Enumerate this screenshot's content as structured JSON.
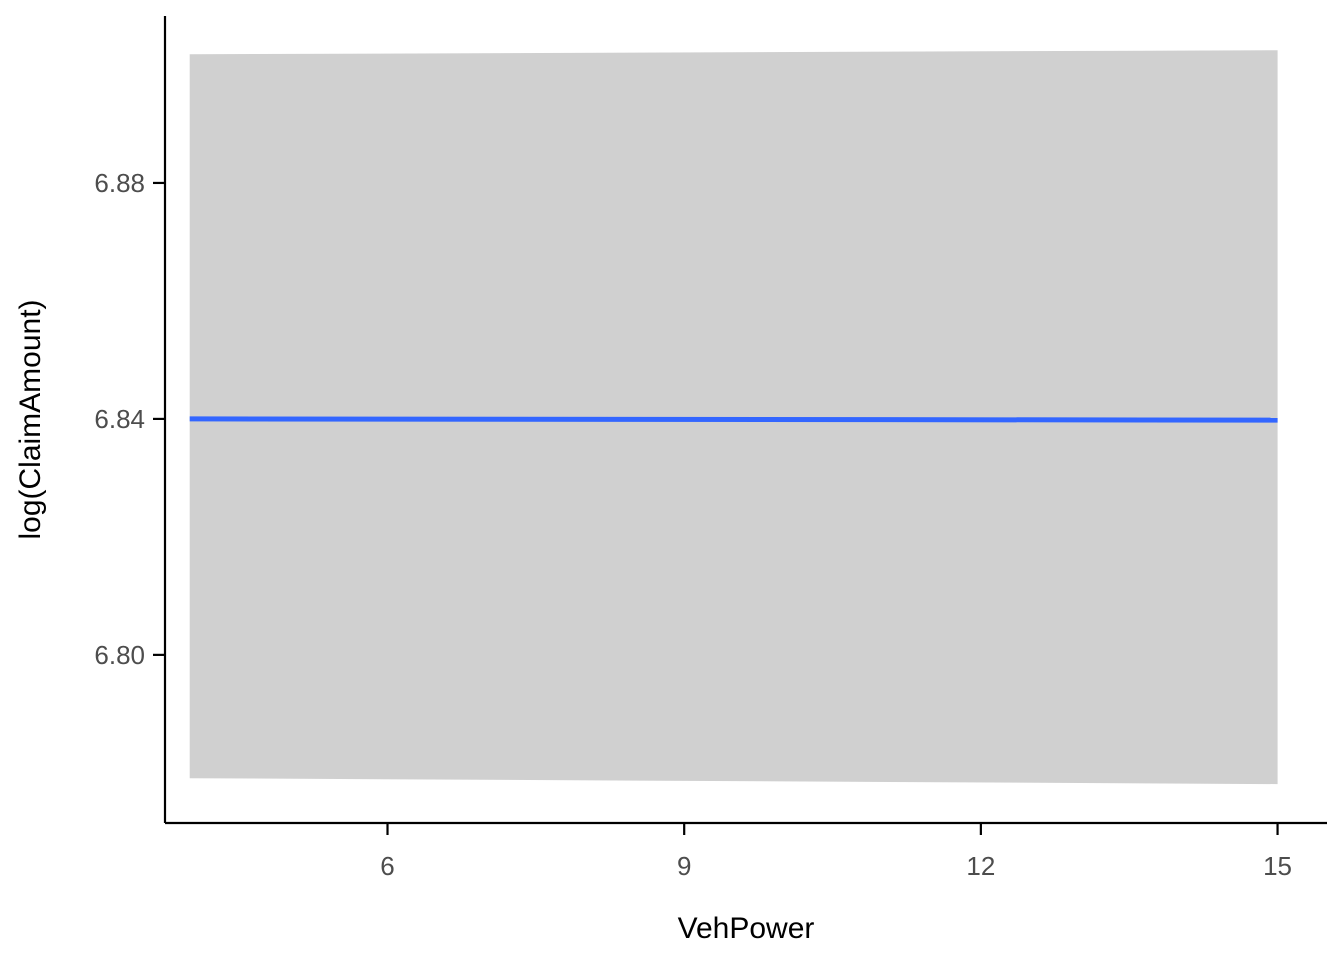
{
  "chart_data": {
    "type": "line",
    "title": "",
    "xlabel": "VehPower",
    "ylabel": "log(ClaimAmount)",
    "xlim": [
      3.75,
      15.5
    ],
    "ylim": [
      6.7715,
      6.9083
    ],
    "x_ticks": [
      6,
      9,
      12,
      15
    ],
    "x_tick_labels": [
      "6",
      "9",
      "12",
      "15"
    ],
    "y_ticks": [
      6.8,
      6.84,
      6.88
    ],
    "y_tick_labels": [
      "6.80",
      "6.84",
      "6.88"
    ],
    "grid": false,
    "legend": "none",
    "series": [
      {
        "x": [
          4,
          15
        ],
        "y": [
          6.84,
          6.8398
        ],
        "ribbon_lower": [
          6.7791,
          6.7781
        ],
        "ribbon_upper": [
          6.9018,
          6.9025
        ]
      }
    ],
    "colors": {
      "line": "#3366ff",
      "ribbon": "#d0d0d0",
      "axis": "#000000",
      "tick_text": "#4d4d4d"
    }
  }
}
